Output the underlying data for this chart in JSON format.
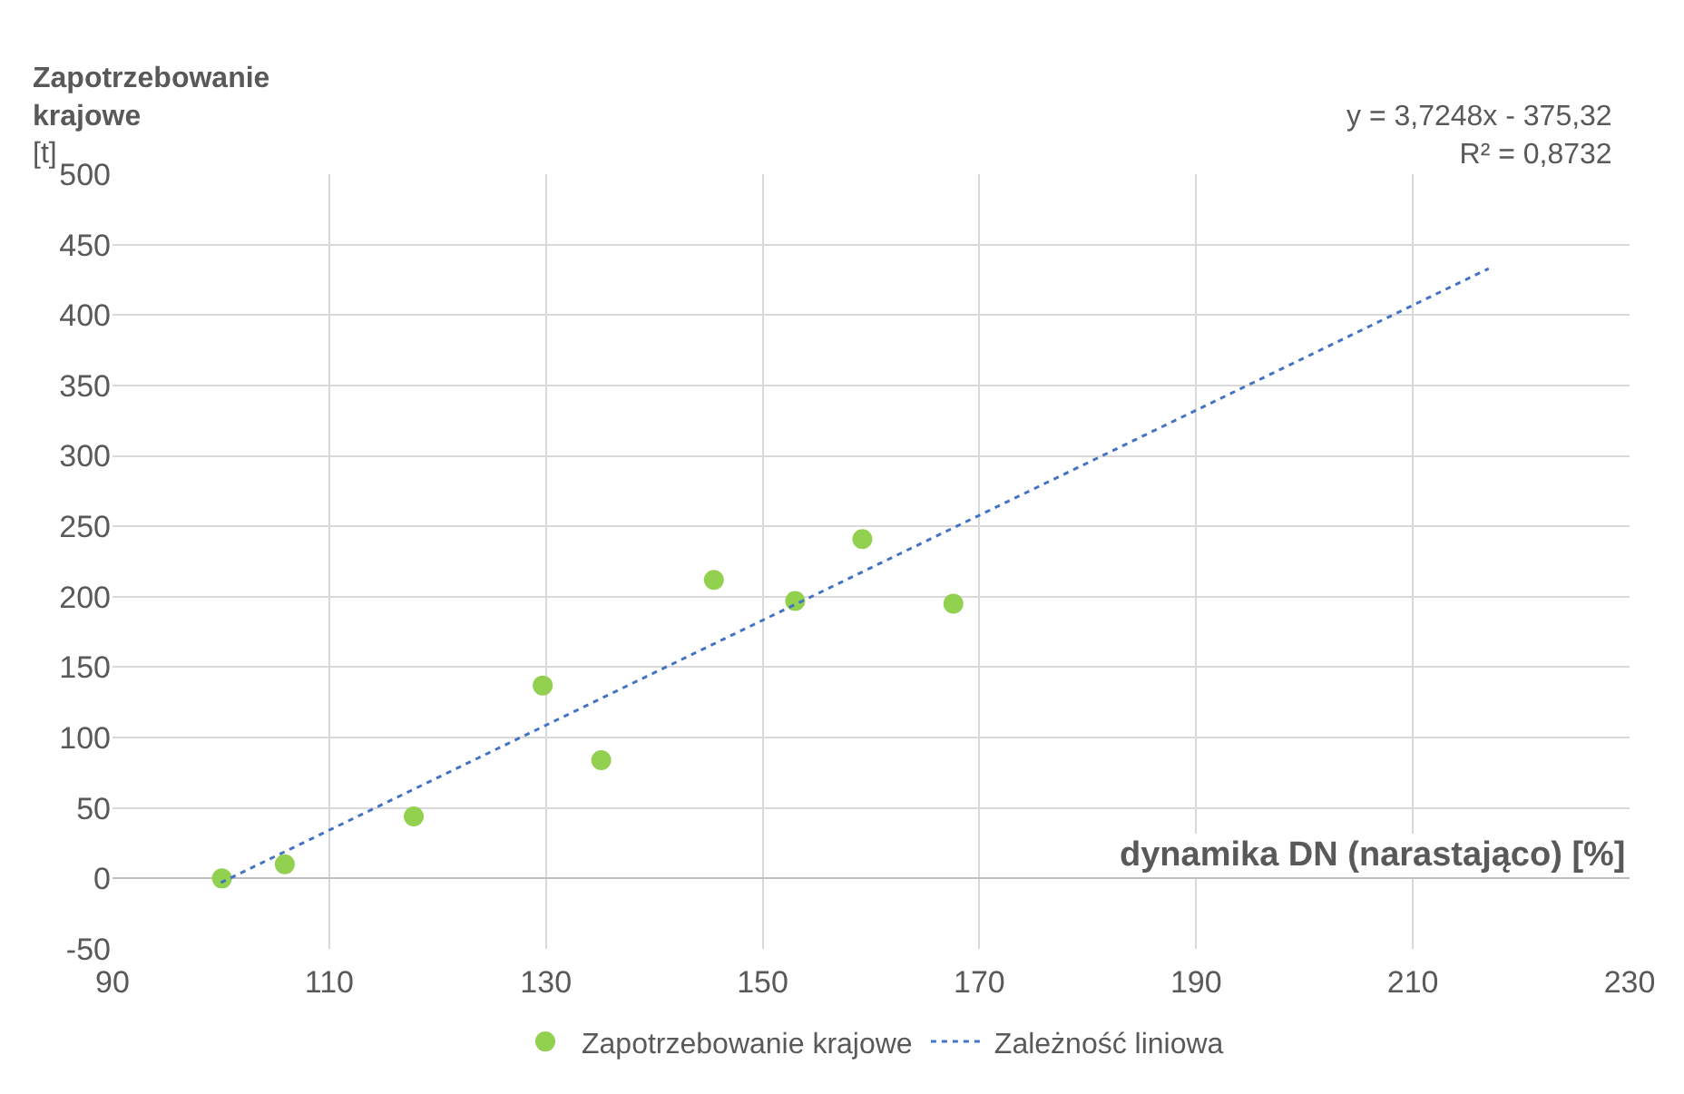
{
  "chart_data": {
    "type": "scatter",
    "xlabel": "dynamika DN (narastająco) [%]",
    "ylabel": "Zapotrzebowanie\nkrajowe\n[t]",
    "series": [
      {
        "name": "Zapotrzebowanie krajowe",
        "color": "#92d050",
        "marker": "circle",
        "x": [
          100.1,
          105.9,
          117.8,
          129.7,
          135.1,
          145.5,
          153.0,
          159.2,
          167.6
        ],
        "values": [
          0,
          10,
          44,
          137,
          84,
          212,
          197,
          241,
          195
        ]
      },
      {
        "name": "Zależność liniowa",
        "type": "line",
        "color": "#4472c4",
        "line_style": "dotted",
        "marker": "none",
        "x": [
          100,
          217
        ],
        "values": [
          -3,
          433
        ]
      }
    ],
    "annotations": [
      "y = 3,7248x - 375,32\nR² = 0,8732"
    ],
    "xlim": [
      90,
      230
    ],
    "xticks": [
      90,
      110,
      130,
      150,
      170,
      190,
      210,
      230
    ],
    "ylim": [
      -50,
      500
    ],
    "yticks": [
      -50,
      0,
      50,
      100,
      150,
      200,
      250,
      300,
      350,
      400,
      450,
      500
    ],
    "grid": true,
    "legend": "bottom"
  }
}
